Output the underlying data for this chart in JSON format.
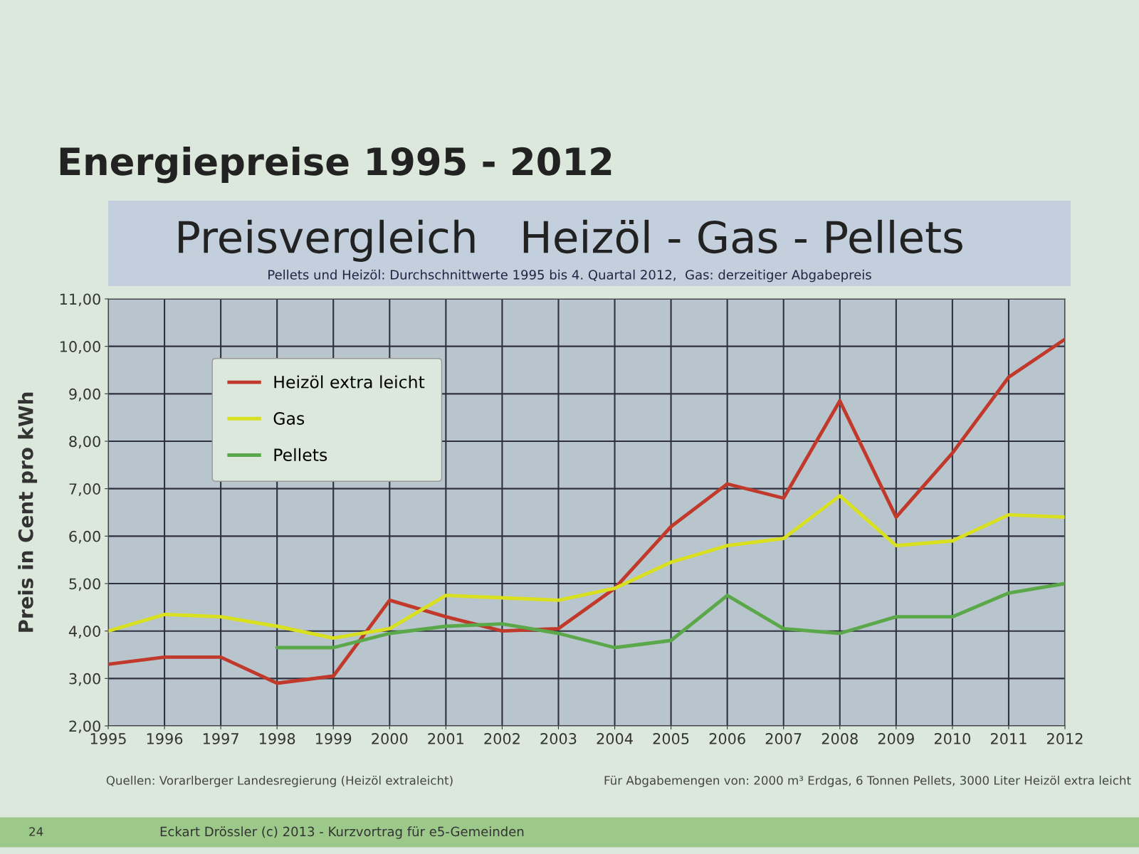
{
  "chart_data": {
    "type": "line",
    "title": "Energiepreise 1995 - 2012",
    "subtitle": "Preisvergleich   Heizöl - Gas - Pellets",
    "ylabel": "Preis in Cent pro kWh",
    "categories": [
      "1995",
      "1996",
      "1997",
      "1998",
      "1999",
      "2000",
      "2001",
      "2002",
      "2003",
      "2004",
      "2005",
      "2006",
      "2007",
      "2008",
      "2009",
      "2010",
      "2011",
      "2012"
    ],
    "series": [
      {
        "name": "Heizöl extra leicht",
        "color": "#c0392b",
        "values": [
          3.3,
          3.45,
          3.45,
          2.9,
          3.05,
          4.65,
          4.3,
          4.0,
          4.05,
          4.9,
          6.2,
          7.1,
          6.8,
          8.85,
          6.4,
          7.75,
          9.35,
          10.15
        ]
      },
      {
        "name": "Gas",
        "color": "#d8e020",
        "values": [
          4.0,
          4.35,
          4.3,
          4.1,
          3.85,
          4.05,
          4.75,
          4.7,
          4.65,
          4.9,
          5.45,
          5.8,
          5.95,
          6.85,
          5.8,
          5.9,
          6.45,
          6.4
        ]
      },
      {
        "name": "Pellets",
        "color": "#5aa84a",
        "values": [
          null,
          null,
          null,
          3.65,
          3.65,
          3.95,
          4.1,
          4.15,
          3.95,
          3.65,
          3.8,
          4.75,
          4.05,
          3.95,
          4.3,
          4.3,
          4.8,
          5.0
        ]
      }
    ],
    "ylim": [
      2,
      11
    ],
    "yticks": [
      {
        "value": 2,
        "label": "2,00"
      },
      {
        "value": 3,
        "label": "3,00"
      },
      {
        "value": 4,
        "label": "4,00"
      },
      {
        "value": 5,
        "label": "5,00"
      },
      {
        "value": 6,
        "label": "6,00"
      },
      {
        "value": 7,
        "label": "7,00"
      },
      {
        "value": 8,
        "label": "8,00"
      },
      {
        "value": 9,
        "label": "9,00"
      },
      {
        "value": 10,
        "label": "10,00"
      },
      {
        "value": 11,
        "label": "11,00"
      }
    ],
    "grid": true,
    "legend": "top left",
    "marker": "none",
    "line_style": "solid",
    "annotations": [
      "Pellets und Heizöl: Durchschnittwerte 1995 bis 4. Quartal 2012,  Gas: derzeitiger Abgabepreis",
      "Quellen: Vorarlberger Landesregierung (Heizöl extraleicht)",
      "Für Abgabemengen von: 2000 m³ Erdgas, 6 Tonnen Pellets, 3000 Liter Heizöl extra leicht",
      "24",
      "Eckart Drössler (c) 2013 - Kurzvortrag für e5-Gemeinden"
    ]
  }
}
